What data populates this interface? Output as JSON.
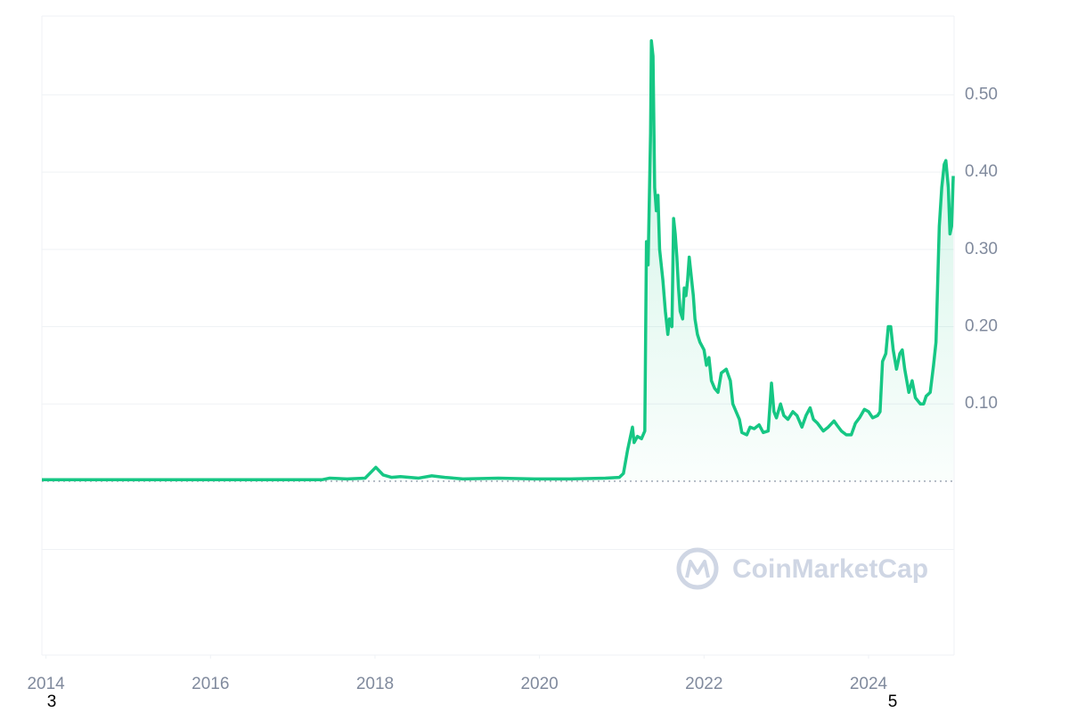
{
  "chart_data": {
    "type": "line",
    "watermark": "CoinMarketCap",
    "annotations": [
      "3",
      "5"
    ],
    "color": "#16c784",
    "x": [
      2013.95,
      2014.52,
      2015.6,
      2016.69,
      2017.36,
      2017.45,
      2017.66,
      2017.88,
      2018.01,
      2018.1,
      2018.2,
      2018.31,
      2018.53,
      2018.69,
      2018.85,
      2019.07,
      2019.5,
      2019.94,
      2020.37,
      2020.8,
      2020.97,
      2021.02,
      2021.07,
      2021.13,
      2021.15,
      2021.19,
      2021.24,
      2021.28,
      2021.3,
      2021.32,
      2021.35,
      2021.36,
      2021.38,
      2021.4,
      2021.42,
      2021.44,
      2021.46,
      2021.5,
      2021.53,
      2021.56,
      2021.58,
      2021.61,
      2021.63,
      2021.65,
      2021.67,
      2021.69,
      2021.71,
      2021.74,
      2021.76,
      2021.78,
      2021.8,
      2021.82,
      2021.84,
      2021.87,
      2021.89,
      2021.92,
      2021.95,
      2022.0,
      2022.03,
      2022.06,
      2022.09,
      2022.13,
      2022.17,
      2022.21,
      2022.27,
      2022.32,
      2022.35,
      2022.39,
      2022.43,
      2022.46,
      2022.52,
      2022.56,
      2022.61,
      2022.67,
      2022.72,
      2022.78,
      2022.82,
      2022.85,
      2022.88,
      2022.93,
      2022.97,
      2023.02,
      2023.08,
      2023.13,
      2023.19,
      2023.24,
      2023.29,
      2023.33,
      2023.38,
      2023.45,
      2023.51,
      2023.58,
      2023.62,
      2023.67,
      2023.73,
      2023.79,
      2023.84,
      2023.89,
      2023.95,
      2024.0,
      2024.05,
      2024.11,
      2024.14,
      2024.17,
      2024.21,
      2024.24,
      2024.27,
      2024.3,
      2024.34,
      2024.38,
      2024.41,
      2024.44,
      2024.49,
      2024.53,
      2024.57,
      2024.63,
      2024.67,
      2024.7,
      2024.75,
      2024.79,
      2024.82,
      2024.86,
      2024.89,
      2024.92,
      2024.94,
      2024.97,
      2024.99,
      2025.01,
      2025.03
    ],
    "values": [
      0.002,
      0.002,
      0.002,
      0.002,
      0.002,
      0.004,
      0.003,
      0.004,
      0.018,
      0.008,
      0.005,
      0.006,
      0.004,
      0.007,
      0.005,
      0.003,
      0.004,
      0.003,
      0.003,
      0.004,
      0.005,
      0.01,
      0.04,
      0.07,
      0.05,
      0.058,
      0.055,
      0.065,
      0.31,
      0.28,
      0.45,
      0.57,
      0.55,
      0.38,
      0.35,
      0.37,
      0.3,
      0.26,
      0.22,
      0.19,
      0.21,
      0.2,
      0.34,
      0.32,
      0.29,
      0.25,
      0.22,
      0.21,
      0.25,
      0.24,
      0.26,
      0.29,
      0.27,
      0.24,
      0.21,
      0.19,
      0.18,
      0.17,
      0.15,
      0.16,
      0.13,
      0.12,
      0.115,
      0.14,
      0.145,
      0.13,
      0.1,
      0.09,
      0.08,
      0.063,
      0.06,
      0.07,
      0.068,
      0.073,
      0.063,
      0.065,
      0.127,
      0.09,
      0.082,
      0.1,
      0.085,
      0.08,
      0.09,
      0.085,
      0.07,
      0.085,
      0.095,
      0.08,
      0.075,
      0.065,
      0.07,
      0.078,
      0.072,
      0.065,
      0.06,
      0.06,
      0.075,
      0.082,
      0.093,
      0.09,
      0.082,
      0.085,
      0.09,
      0.155,
      0.165,
      0.2,
      0.2,
      0.17,
      0.145,
      0.165,
      0.17,
      0.145,
      0.115,
      0.13,
      0.108,
      0.1,
      0.1,
      0.11,
      0.115,
      0.15,
      0.18,
      0.33,
      0.38,
      0.41,
      0.415,
      0.38,
      0.32,
      0.33,
      0.395
    ],
    "xlim": [
      2013.95,
      2025.04
    ],
    "xticks": [
      2014,
      2016,
      2018,
      2020,
      2022,
      2024
    ],
    "ylim": [
      -0.225,
      0.602
    ],
    "yticks": [
      {
        "value": 0.1,
        "label": "0.10"
      },
      {
        "value": 0.2,
        "label": "0.20"
      },
      {
        "value": 0.3,
        "label": "0.30"
      },
      {
        "value": 0.4,
        "label": "0.40"
      },
      {
        "value": 0.5,
        "label": "0.50"
      }
    ],
    "grid": true
  }
}
